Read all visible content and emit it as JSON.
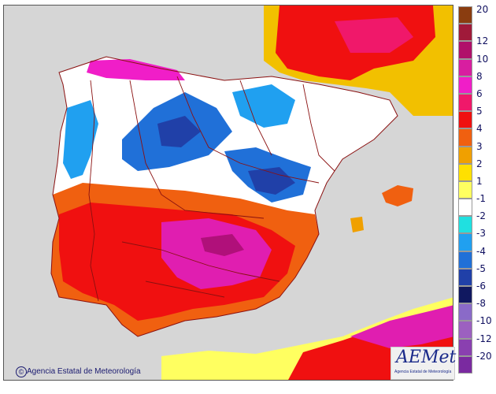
{
  "map": {
    "credit": "Agencia Estatal de Meteorología",
    "copyright_symbol": "©"
  },
  "logo": {
    "text": "AEMet",
    "subtext": "Agencia Estatal de Meteorología"
  },
  "legend": {
    "labels": [
      "20",
      "12",
      "10",
      "8",
      "6",
      "5",
      "4",
      "3",
      "2",
      "1",
      "-1",
      "-2",
      "-3",
      "-4",
      "-5",
      "-6",
      "-8",
      "-10",
      "-12",
      "-20"
    ],
    "colors": [
      "#8a3d10",
      "#a01a3a",
      "#b0106a",
      "#d81ea0",
      "#f01ec8",
      "#f0186a",
      "#f01010",
      "#f06010",
      "#f0a000",
      "#ffe000",
      "#ffff60",
      "#ffffff",
      "#20e0e0",
      "#20a0f0",
      "#2070d8",
      "#2040a8",
      "#101860",
      "#8a6ac8",
      "#9c60c0",
      "#8a40b0",
      "#7a2aa0"
    ]
  },
  "colors": {
    "sea": "#d6d6d6",
    "land_neutral": "#ffffff",
    "border": "#8a1010"
  }
}
